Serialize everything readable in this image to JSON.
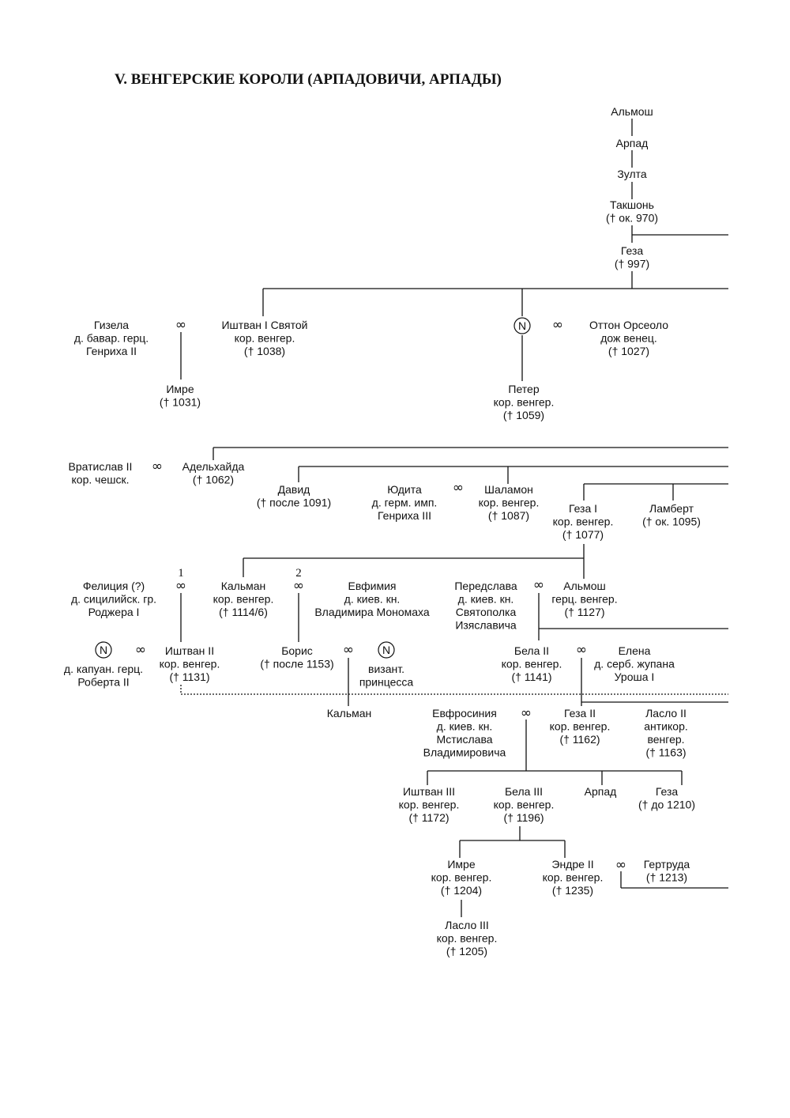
{
  "title": "V. ВЕНГЕРСКИЕ КОРОЛИ (АРПАДОВИЧИ, АРПАДЫ)",
  "marriage_symbol": "∞",
  "unknown_symbol": "N",
  "marriage_numbers": [
    "1",
    "2"
  ],
  "persons": [
    {
      "lines": [
        "Альмош"
      ]
    },
    {
      "lines": [
        "Арпад"
      ]
    },
    {
      "lines": [
        "Зулта"
      ]
    },
    {
      "lines": [
        "Такшонь",
        "(† ок. 970)"
      ]
    },
    {
      "lines": [
        "Геза",
        "(† 997)"
      ]
    },
    {
      "lines": [
        "Гизела",
        "д. бавар. герц.",
        "Генриха II"
      ]
    },
    {
      "lines": [
        "Иштван I Святой",
        "кор. венгер.",
        "(† 1038)"
      ]
    },
    {
      "lines": [
        "Оттон Орсеоло",
        "дож венец.",
        "(† 1027)"
      ]
    },
    {
      "lines": [
        "Имре",
        "(† 1031)"
      ]
    },
    {
      "lines": [
        "Петер",
        "кор. венгер.",
        "(† 1059)"
      ]
    },
    {
      "lines": [
        "Вратислав II",
        "кор. чешск."
      ]
    },
    {
      "lines": [
        "Адельхайда",
        "(† 1062)"
      ]
    },
    {
      "lines": [
        "Давид",
        "(† после 1091)"
      ]
    },
    {
      "lines": [
        "Юдита",
        "д. герм. имп.",
        "Генриха III"
      ]
    },
    {
      "lines": [
        "Шаламон",
        "кор. венгер.",
        "(† 1087)"
      ]
    },
    {
      "lines": [
        "Геза I",
        "кор. венгер.",
        "(† 1077)"
      ]
    },
    {
      "lines": [
        "Ламберт",
        "(† ок. 1095)"
      ]
    },
    {
      "lines": [
        "Фелиция (?)",
        "д. сицилийск. гр.",
        "Роджера I"
      ]
    },
    {
      "lines": [
        "Кальман",
        "кор. венгер.",
        "(† 1114/6)"
      ]
    },
    {
      "lines": [
        "Евфимия",
        "д. киев. кн.",
        "Владимира Мономаха"
      ]
    },
    {
      "lines": [
        "Передслава",
        "д. киев. кн.",
        "Святополка",
        "Изяславича"
      ]
    },
    {
      "lines": [
        "Альмош",
        "герц. венгер.",
        "(† 1127)"
      ]
    },
    {
      "lines": [
        "д. капуан. герц.",
        "Роберта II"
      ]
    },
    {
      "lines": [
        "Иштван II",
        "кор. венгер.",
        "(† 1131)"
      ]
    },
    {
      "lines": [
        "Борис",
        "(† после 1153)"
      ]
    },
    {
      "lines": [
        "визант.",
        "принцесса"
      ]
    },
    {
      "lines": [
        "Бела II",
        "кор. венгер.",
        "(† 1141)"
      ]
    },
    {
      "lines": [
        "Елена",
        "д. серб. жупана",
        "Уроша I"
      ]
    },
    {
      "lines": [
        "Кальман"
      ]
    },
    {
      "lines": [
        "Евфросиния",
        "д. киев. кн.",
        "Мстислава",
        "Владимировича"
      ]
    },
    {
      "lines": [
        "Геза II",
        "кор. венгер.",
        "(† 1162)"
      ]
    },
    {
      "lines": [
        "Ласло II",
        "антикор.",
        "венгер.",
        "(† 1163)"
      ]
    },
    {
      "lines": [
        "Иштван III",
        "кор. венгер.",
        "(† 1172)"
      ]
    },
    {
      "lines": [
        "Бела III",
        "кор. венгер.",
        "(† 1196)"
      ]
    },
    {
      "lines": [
        "Арпад"
      ]
    },
    {
      "lines": [
        "Геза",
        "(† до 1210)"
      ]
    },
    {
      "lines": [
        "Имре",
        "кор. венгер.",
        "(† 1204)"
      ]
    },
    {
      "lines": [
        "Эндре II",
        "кор. венгер.",
        "(† 1235)"
      ]
    },
    {
      "lines": [
        "Гертруда",
        "(† 1213)"
      ]
    },
    {
      "lines": [
        "Ласло III",
        "кор. венгер.",
        "(† 1205)"
      ]
    }
  ]
}
